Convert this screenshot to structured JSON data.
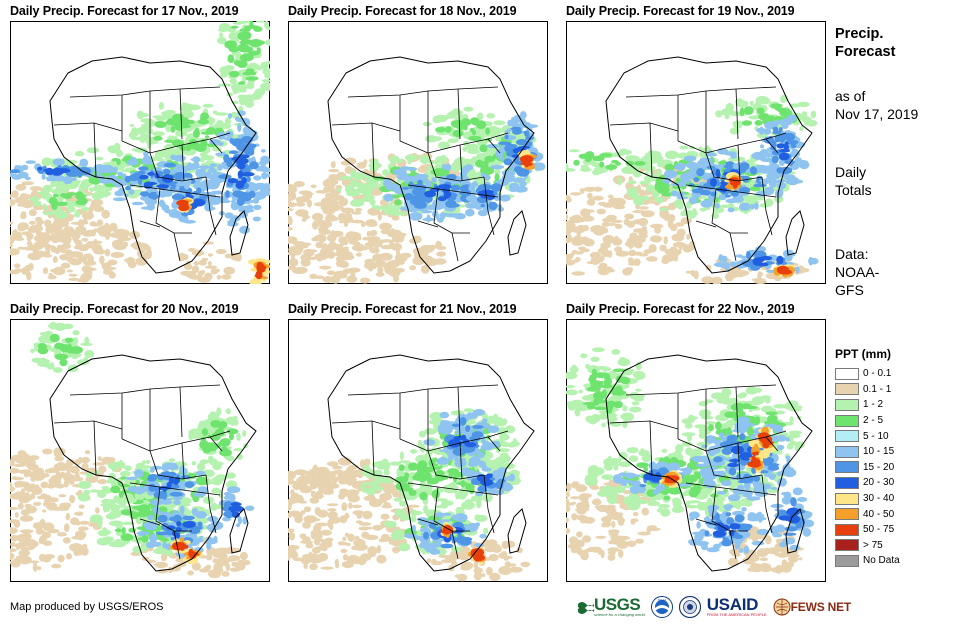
{
  "panels": [
    {
      "title": "Daily Precip. Forecast for 17 Nov., 2019"
    },
    {
      "title": "Daily Precip. Forecast for 18 Nov., 2019"
    },
    {
      "title": "Daily Precip. Forecast for 19 Nov., 2019"
    },
    {
      "title": "Daily Precip. Forecast for 20 Nov., 2019"
    },
    {
      "title": "Daily Precip. Forecast for 21 Nov., 2019"
    },
    {
      "title": "Daily Precip. Forecast for 22 Nov., 2019"
    }
  ],
  "sidebar": {
    "title_line1": "Precip.",
    "title_line2": "Forecast",
    "asof_line1": "as of",
    "asof_line2": "Nov 17, 2019",
    "daily_line1": "Daily",
    "daily_line2": "Totals",
    "data_line1": "Data:",
    "data_line2": "NOAA-",
    "data_line3": "GFS"
  },
  "legend": {
    "title": "PPT (mm)",
    "items": [
      {
        "label": "0 - 0.1",
        "color": "#ffffff"
      },
      {
        "label": "0.1 - 1",
        "color": "#e8d3b0"
      },
      {
        "label": "1 - 2",
        "color": "#b5f2b0"
      },
      {
        "label": "2 - 5",
        "color": "#6ee36e"
      },
      {
        "label": "5 - 10",
        "color": "#b3eef5"
      },
      {
        "label": "10 - 15",
        "color": "#8ec4ef"
      },
      {
        "label": "15 - 20",
        "color": "#4f95e6"
      },
      {
        "label": "20 - 30",
        "color": "#1f5fe0"
      },
      {
        "label": "30 - 40",
        "color": "#fde68a"
      },
      {
        "label": "40 - 50",
        "color": "#f5a02a"
      },
      {
        "label": "50 - 75",
        "color": "#e8400d"
      },
      {
        "label": "> 75",
        "color": "#a8211c"
      },
      {
        "label": "No Data",
        "color": "#9b9b9b"
      }
    ]
  },
  "credit": "Map produced by USGS/EROS",
  "logos": {
    "usgs": "USGS",
    "usgs_tagline": "science for a changing world",
    "noaa": "NOAA",
    "usaid": "USAID",
    "usaid_tagline": "FROM THE AMERICAN PEOPLE",
    "fews": "FEWS NET"
  }
}
